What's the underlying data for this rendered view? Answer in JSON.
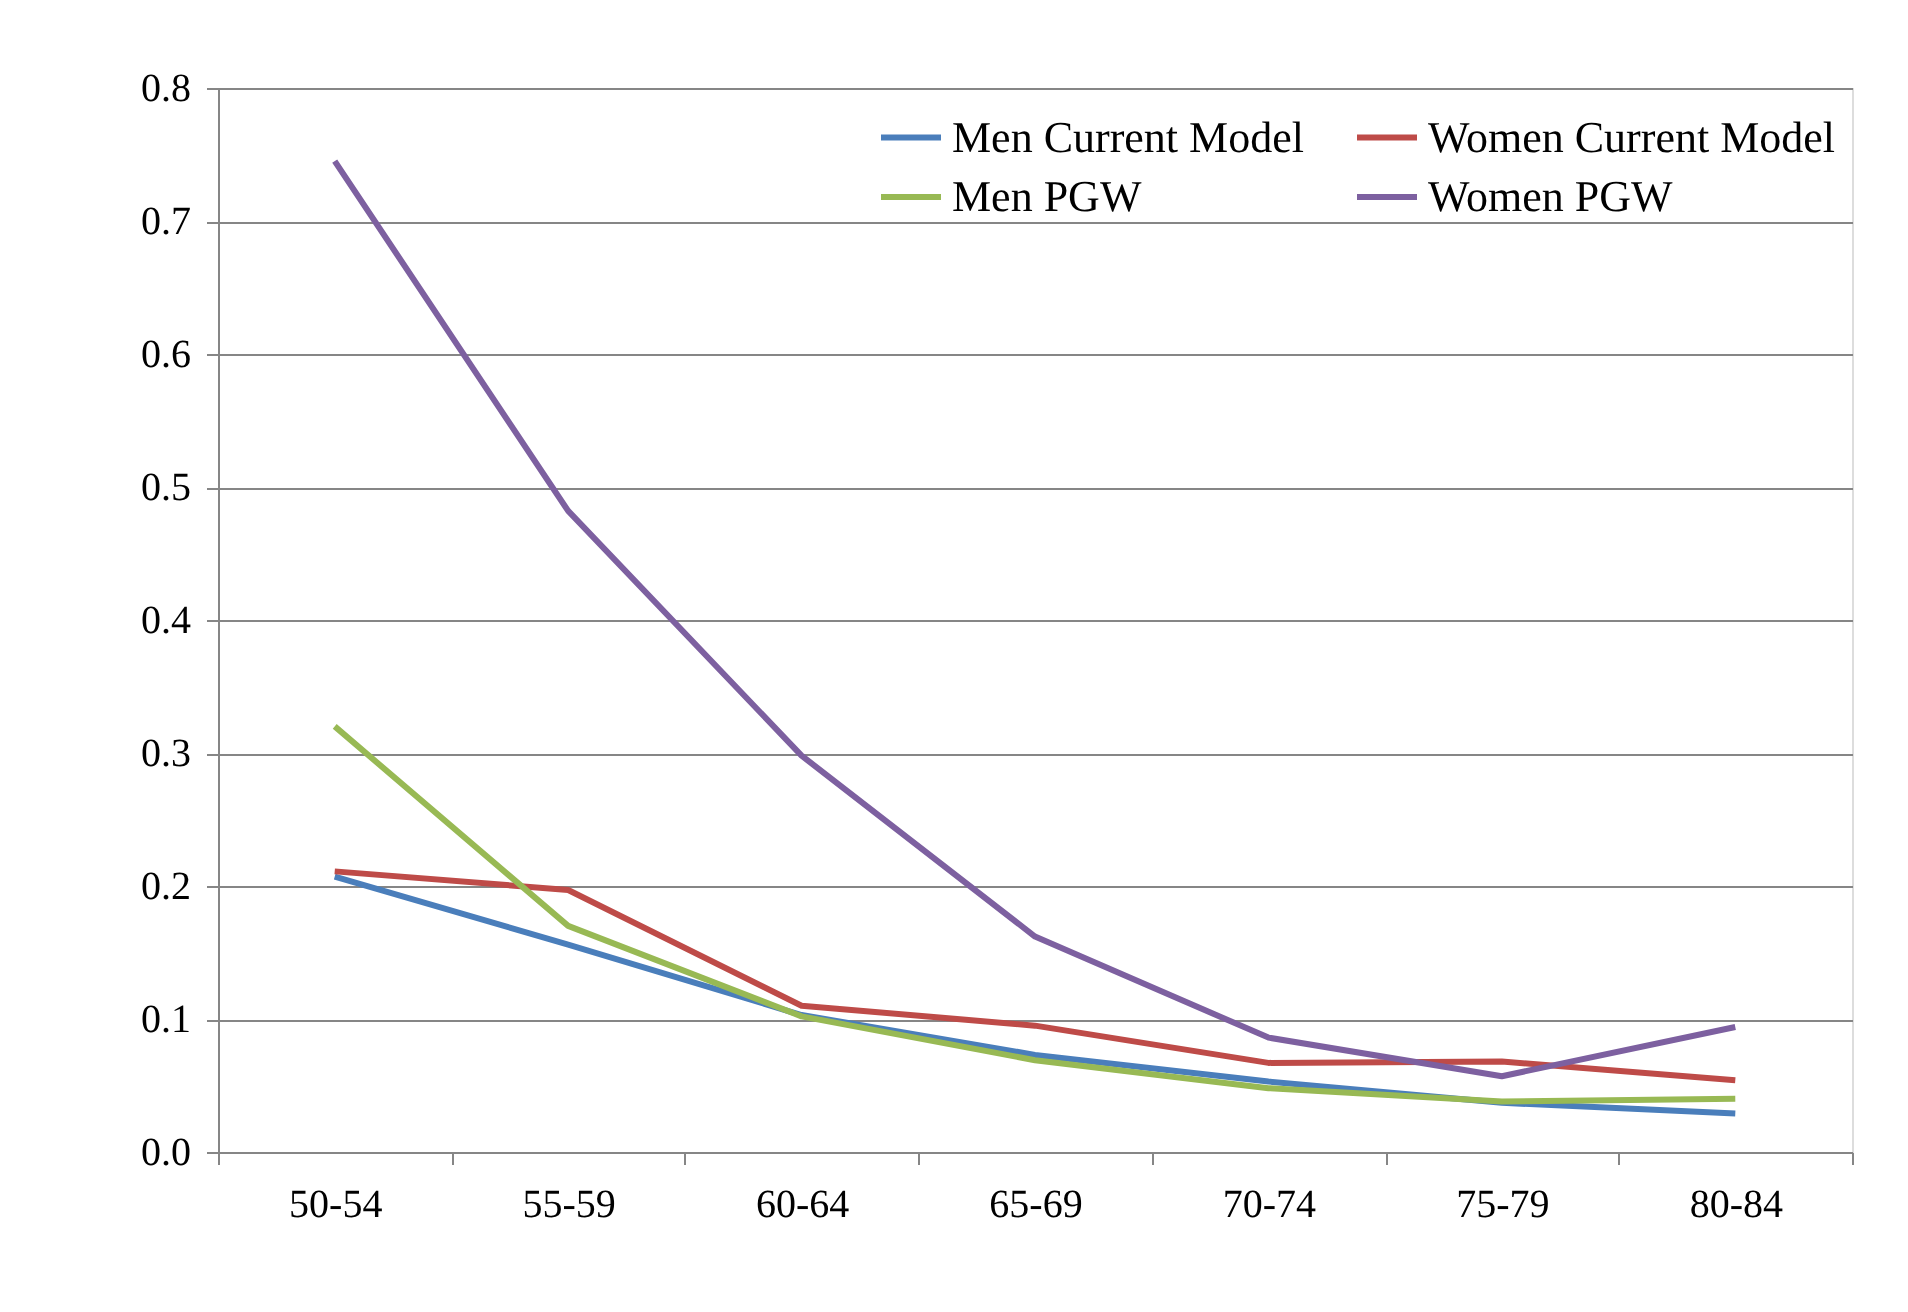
{
  "chart_data": {
    "type": "line",
    "categories": [
      "50-54",
      "55-59",
      "60-64",
      "65-69",
      "70-74",
      "75-79",
      "80-84"
    ],
    "series": [
      {
        "name": "Men Current Model",
        "color": "#4a7ebb",
        "values": [
          0.207,
          0.156,
          0.103,
          0.073,
          0.053,
          0.037,
          0.029
        ]
      },
      {
        "name": "Women Current Model",
        "color": "#be4b48",
        "values": [
          0.211,
          0.197,
          0.11,
          0.095,
          0.067,
          0.068,
          0.054
        ]
      },
      {
        "name": "Men PGW",
        "color": "#98b954",
        "values": [
          0.32,
          0.17,
          0.102,
          0.069,
          0.048,
          0.038,
          0.04
        ]
      },
      {
        "name": "Women PGW",
        "color": "#7d60a0",
        "values": [
          0.745,
          0.482,
          0.298,
          0.162,
          0.086,
          0.057,
          0.094
        ]
      }
    ],
    "ylim": [
      0,
      0.8
    ],
    "yticks": [
      {
        "value": 0,
        "label": "0.0"
      },
      0.1,
      0.2,
      0.3,
      0.4,
      0.5,
      0.6,
      0.7,
      0.8
    ],
    "grid": "y",
    "legend": "top right",
    "marker": "none",
    "line_style": "solid"
  }
}
